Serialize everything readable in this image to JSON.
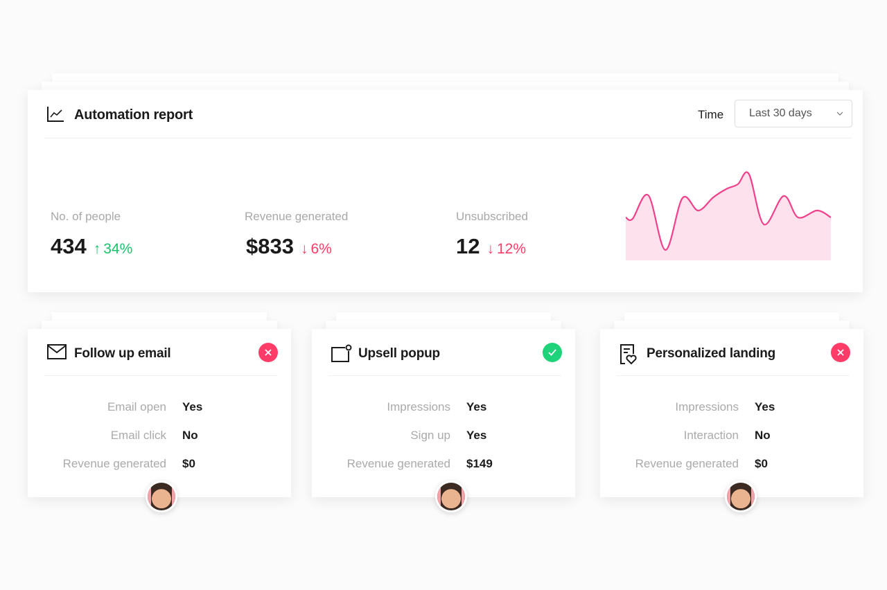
{
  "report": {
    "title": "Automation report",
    "time_label": "Time",
    "time_select": "Last 30 days",
    "stats": [
      {
        "label": "No. of people",
        "value": "434",
        "delta": "34%",
        "direction": "up"
      },
      {
        "label": "Revenue generated",
        "value": "$833",
        "delta": "6%",
        "direction": "down"
      },
      {
        "label": "Unsubscribed",
        "value": "12",
        "delta": "12%",
        "direction": "down"
      }
    ]
  },
  "chart_data": {
    "type": "area",
    "x": [
      0,
      1,
      3.3,
      5.8,
      8.3,
      10.6,
      12.8,
      14.7,
      16.4,
      18,
      20.2,
      23.1,
      25.2,
      28,
      30
    ],
    "values": [
      62,
      60,
      94,
      15,
      90,
      72,
      91,
      103,
      110,
      125,
      52,
      93,
      62,
      72,
      62
    ],
    "ylim": [
      0,
      130
    ],
    "line_color": "#f0408a",
    "fill_color": "#fde2ee"
  },
  "cards": [
    {
      "title": "Follow up email",
      "icon": "mail-icon",
      "status": "failed",
      "rows": [
        {
          "label": "Email open",
          "value": "Yes"
        },
        {
          "label": "Email click",
          "value": "No"
        },
        {
          "label": "Revenue generated",
          "value": "$0"
        }
      ]
    },
    {
      "title": "Upsell popup",
      "icon": "popup-icon",
      "status": "success",
      "rows": [
        {
          "label": "Impressions",
          "value": "Yes"
        },
        {
          "label": "Sign up",
          "value": "Yes"
        },
        {
          "label": "Revenue generated",
          "value": "$149"
        }
      ]
    },
    {
      "title": "Personalized landing",
      "icon": "landing-page-icon",
      "status": "failed",
      "rows": [
        {
          "label": "Impressions",
          "value": "Yes"
        },
        {
          "label": "Interaction",
          "value": "No"
        },
        {
          "label": "Revenue generated",
          "value": "$0"
        }
      ]
    }
  ],
  "colors": {
    "success": "#1ed37a",
    "failed": "#ff3c67",
    "up": "#19c26b",
    "down": "#ff3c67"
  }
}
